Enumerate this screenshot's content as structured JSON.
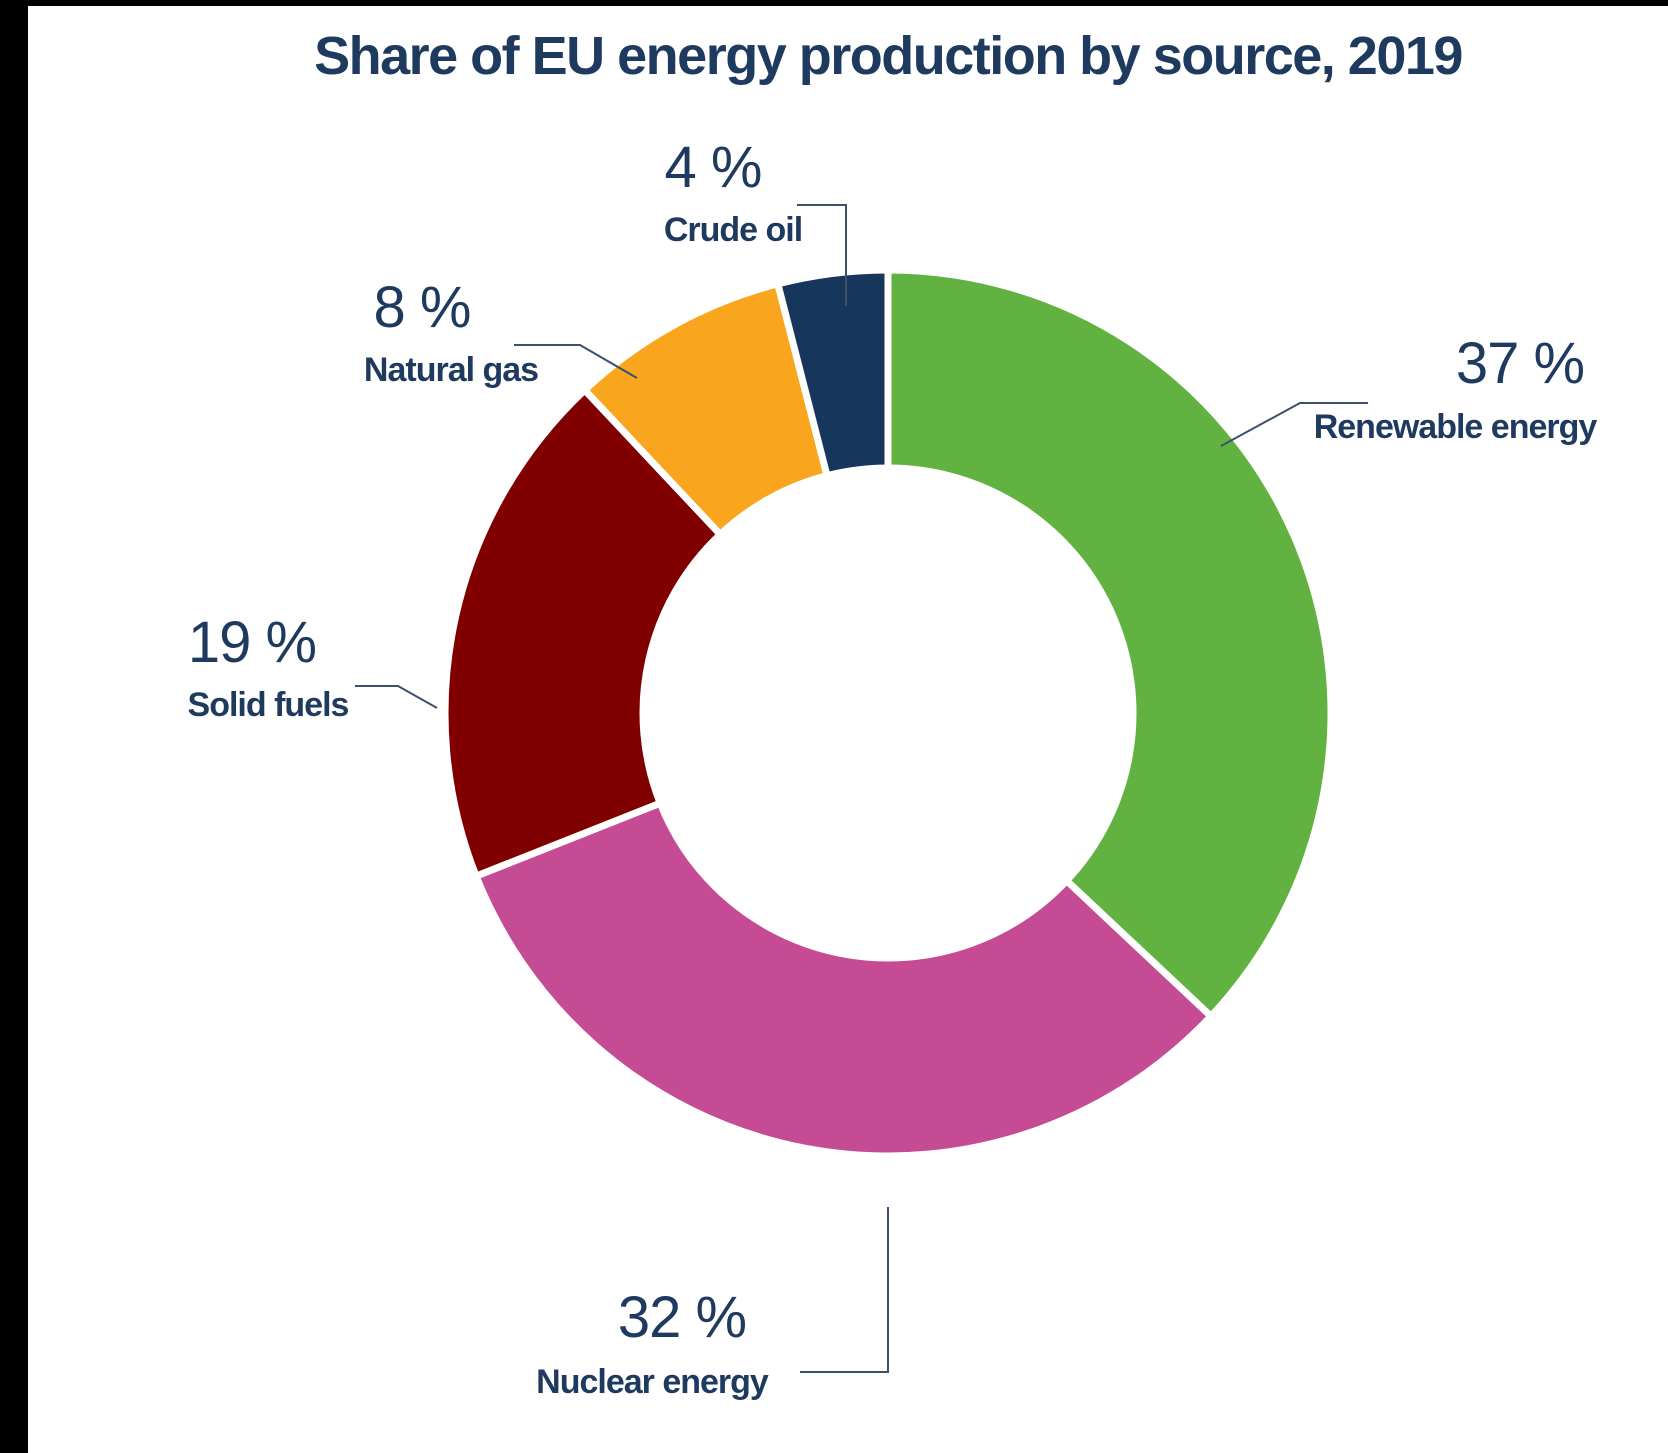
{
  "colors": {
    "text": "#1f3a5f",
    "leader": "#3d4f6b",
    "separator": "#ffffff"
  },
  "chart_data": {
    "type": "pie",
    "title": "Share of EU energy production by source, 2019",
    "slices": [
      {
        "label": "Renewable energy",
        "value": 37,
        "value_label": "37 %",
        "color": "#62b241",
        "icon": ""
      },
      {
        "label": "Nuclear energy",
        "value": 32,
        "value_label": "32 %",
        "color": "#c64b95"
      },
      {
        "label": "Solid fuels",
        "value": 19,
        "value_label": "19 %",
        "color": "#800000"
      },
      {
        "label": "Natural gas",
        "value": 8,
        "value_label": "8 %",
        "color": "#f9a51e"
      },
      {
        "label": "Crude oil",
        "value": 4,
        "value_label": "4 %",
        "color": "#17365c"
      }
    ]
  }
}
